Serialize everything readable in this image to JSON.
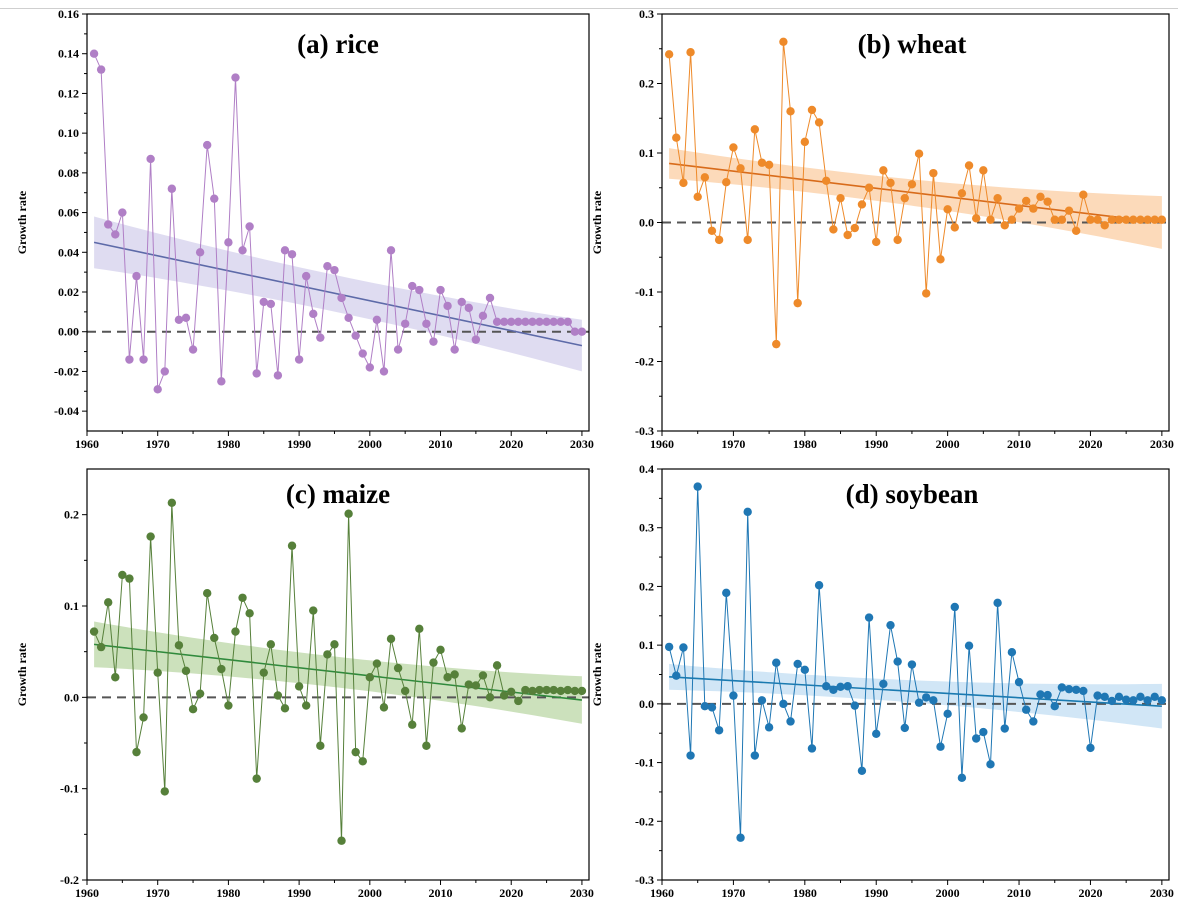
{
  "chart_data": [
    {
      "type": "line",
      "title": "(a) rice",
      "ylabel": "Growth rate",
      "xlim": [
        1960,
        2031
      ],
      "ylim": [
        -0.05,
        0.16
      ],
      "xticks": [
        "1960",
        "1970",
        "1980",
        "1990",
        "2000",
        "2010",
        "2020",
        "2030"
      ],
      "yticks": [
        "-0.04",
        "-0.02",
        "0.00",
        "0.02",
        "0.04",
        "0.06",
        "0.08",
        "0.10",
        "0.12",
        "0.14",
        "0.16"
      ],
      "color": "#b07fc6",
      "trend_color": "#5d6aa8",
      "band_color": "#d9d6ee",
      "trend": {
        "start": 0.045,
        "end": -0.007
      },
      "band_half_width": [
        0.013,
        0.0055,
        0.013
      ],
      "series": [
        {
          "x_start": 1961,
          "values": [
            0.14,
            0.132,
            0.054,
            0.049,
            0.06,
            -0.014,
            0.028,
            -0.014,
            0.087,
            -0.029,
            -0.02,
            0.072,
            0.006,
            0.007,
            -0.009,
            0.04,
            0.094,
            0.067,
            -0.025,
            0.045,
            0.128,
            0.041,
            0.053,
            -0.021,
            0.015,
            0.014,
            -0.022,
            0.041,
            0.039,
            -0.014,
            0.028,
            0.009,
            -0.003,
            0.033,
            0.031,
            0.017,
            0.007,
            -0.002,
            -0.011,
            -0.018,
            0.006,
            -0.02,
            0.041,
            -0.009,
            0.004,
            0.023,
            0.021,
            0.004,
            -0.005,
            0.021,
            0.013,
            -0.009,
            0.015,
            0.012,
            -0.004,
            0.008,
            0.017,
            0.005,
            0.005,
            0.005,
            0.005,
            0.005,
            0.005,
            0.005,
            0.005,
            0.005,
            0.005,
            0.005,
            0.0,
            0.0
          ]
        }
      ]
    },
    {
      "type": "line",
      "title": "(b) wheat",
      "ylabel": "Growth rate",
      "xlim": [
        1960,
        2031
      ],
      "ylim": [
        -0.3,
        0.3
      ],
      "xticks": [
        "1960",
        "1970",
        "1980",
        "1990",
        "2000",
        "2010",
        "2020",
        "2030"
      ],
      "yticks": [
        "-0.3",
        "-0.2",
        "-0.1",
        "0.0",
        "0.1",
        "0.2",
        "0.3"
      ],
      "color": "#ee8a2a",
      "trend_color": "#d86b1a",
      "band_color": "#fbd3ae",
      "trend": {
        "start": 0.085,
        "end": 0.0
      },
      "band_half_width": [
        0.022,
        0.008,
        0.038
      ],
      "series": [
        {
          "x_start": 1961,
          "values": [
            0.242,
            0.122,
            0.057,
            0.245,
            0.037,
            0.065,
            -0.012,
            -0.025,
            0.058,
            0.108,
            0.078,
            -0.025,
            0.134,
            0.086,
            0.083,
            -0.175,
            0.26,
            0.16,
            -0.116,
            0.116,
            0.162,
            0.144,
            0.06,
            -0.01,
            0.035,
            -0.018,
            -0.008,
            0.026,
            0.05,
            -0.028,
            0.075,
            0.057,
            -0.025,
            0.035,
            0.055,
            0.099,
            -0.102,
            0.071,
            -0.053,
            0.019,
            -0.007,
            0.042,
            0.082,
            0.006,
            0.075,
            0.004,
            0.035,
            -0.004,
            0.004,
            0.02,
            0.031,
            0.02,
            0.037,
            0.03,
            0.004,
            0.004,
            0.017,
            -0.012,
            0.04,
            0.004,
            0.004,
            -0.004,
            0.004,
            0.004,
            0.004,
            0.004,
            0.004,
            0.004,
            0.004,
            0.004
          ]
        }
      ]
    },
    {
      "type": "line",
      "title": "(c) maize",
      "ylabel": "Growth rate",
      "xlim": [
        1960,
        2031
      ],
      "ylim": [
        -0.2,
        0.25
      ],
      "xticks": [
        "1960",
        "1970",
        "1980",
        "1990",
        "2000",
        "2010",
        "2020",
        "2030"
      ],
      "yticks": [
        "-0.2",
        "-0.1",
        "0.0",
        "0.1",
        "0.2"
      ],
      "color": "#56803a",
      "trend_color": "#2f8a3c",
      "band_color": "#c3dcb0",
      "trend": {
        "start": 0.058,
        "end": -0.003
      },
      "band_half_width": [
        0.025,
        0.008,
        0.026
      ],
      "series": [
        {
          "x_start": 1961,
          "values": [
            0.072,
            0.055,
            0.104,
            0.022,
            0.134,
            0.13,
            -0.06,
            -0.022,
            0.176,
            0.027,
            -0.103,
            0.213,
            0.057,
            0.029,
            -0.013,
            0.004,
            0.114,
            0.065,
            0.031,
            -0.009,
            0.072,
            0.109,
            0.092,
            -0.089,
            0.027,
            0.058,
            0.002,
            -0.012,
            0.166,
            0.012,
            -0.009,
            0.095,
            -0.053,
            0.047,
            0.058,
            -0.157,
            0.201,
            -0.06,
            -0.07,
            0.022,
            0.037,
            -0.011,
            0.064,
            0.032,
            0.007,
            -0.03,
            0.075,
            -0.053,
            0.038,
            0.052,
            0.022,
            0.025,
            -0.034,
            0.014,
            0.013,
            0.024,
            0.0,
            0.035,
            0.002,
            0.006,
            -0.004,
            0.008,
            0.007,
            0.008,
            0.008,
            0.008,
            0.007,
            0.008,
            0.007,
            0.007
          ]
        }
      ]
    },
    {
      "type": "line",
      "title": "(d) soybean",
      "ylabel": "Growth rate",
      "xlim": [
        1960,
        2031
      ],
      "ylim": [
        -0.3,
        0.4
      ],
      "xticks": [
        "1960",
        "1970",
        "1980",
        "1990",
        "2000",
        "2010",
        "2020",
        "2030"
      ],
      "yticks": [
        "-0.3",
        "-0.2",
        "-0.1",
        "0.0",
        "0.1",
        "0.2",
        "0.3",
        "0.4"
      ],
      "color": "#1f77b4",
      "trend_color": "#1a7ab0",
      "band_color": "#c9e2f5",
      "trend": {
        "start": 0.046,
        "end": -0.004
      },
      "band_half_width": [
        0.022,
        0.008,
        0.038
      ],
      "series": [
        {
          "x_start": 1961,
          "values": [
            0.097,
            0.048,
            0.096,
            -0.088,
            0.37,
            -0.004,
            -0.006,
            -0.045,
            0.189,
            0.014,
            -0.228,
            0.327,
            -0.088,
            0.006,
            -0.04,
            0.07,
            0.0,
            -0.03,
            0.068,
            0.058,
            -0.076,
            0.202,
            0.03,
            0.024,
            0.029,
            0.03,
            -0.003,
            -0.114,
            0.147,
            -0.051,
            0.034,
            0.134,
            0.072,
            -0.041,
            0.067,
            0.002,
            0.011,
            0.006,
            -0.073,
            -0.017,
            0.165,
            -0.126,
            0.099,
            -0.059,
            -0.048,
            -0.103,
            0.172,
            -0.042,
            0.088,
            0.037,
            -0.01,
            -0.03,
            0.016,
            0.015,
            -0.004,
            0.028,
            0.025,
            0.024,
            0.022,
            -0.075,
            0.014,
            0.012,
            0.005,
            0.012,
            0.007,
            0.006,
            0.012,
            0.006,
            0.012,
            0.006
          ]
        }
      ]
    }
  ]
}
